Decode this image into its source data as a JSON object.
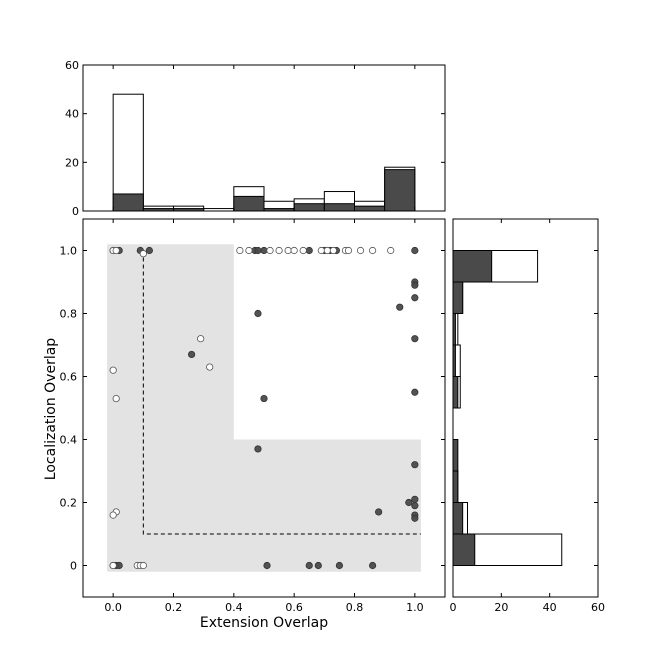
{
  "chart_data": [
    {
      "panel": "top-histogram",
      "type": "bar",
      "stacked_overlay": true,
      "bins": [
        [
          0.0,
          0.1
        ],
        [
          0.1,
          0.2
        ],
        [
          0.2,
          0.3
        ],
        [
          0.3,
          0.4
        ],
        [
          0.4,
          0.5
        ],
        [
          0.5,
          0.6
        ],
        [
          0.6,
          0.7
        ],
        [
          0.7,
          0.8
        ],
        [
          0.8,
          0.9
        ],
        [
          0.9,
          1.0
        ]
      ],
      "series": [
        {
          "style": "open",
          "color": "#ffffff",
          "edge": "#000000",
          "values": [
            48,
            2,
            2,
            1,
            10,
            4,
            5,
            8,
            4,
            18
          ]
        },
        {
          "style": "filled",
          "color": "#4a4a4a",
          "edge": "#000000",
          "values": [
            7,
            1,
            1,
            0,
            6,
            1,
            3,
            3,
            2,
            17
          ]
        }
      ],
      "xlim": [
        -0.1,
        1.1
      ],
      "ylim": [
        0,
        60
      ],
      "yticks": [
        "0",
        "20",
        "40",
        "60"
      ]
    },
    {
      "panel": "main-scatter",
      "type": "scatter",
      "xlabel": "Extension Overlap",
      "ylabel": "Localization Overlap",
      "xlim": [
        -0.1,
        1.1
      ],
      "ylim": [
        -0.1,
        1.1
      ],
      "xticks": [
        "0.0",
        "0.2",
        "0.4",
        "0.6",
        "0.8",
        "1.0"
      ],
      "yticks": [
        "0",
        "0.2",
        "0.4",
        "0.6",
        "0.8",
        "1.0"
      ],
      "shaded_region": [
        [
          -0.02,
          -0.02
        ],
        [
          -0.02,
          1.02
        ],
        [
          0.4,
          1.02
        ],
        [
          0.4,
          0.4
        ],
        [
          1.02,
          0.4
        ],
        [
          1.02,
          -0.02
        ]
      ],
      "shaded_color": "#e3e3e3",
      "dashed_threshold": [
        [
          0.1,
          1.0
        ],
        [
          0.1,
          0.1
        ],
        [
          1.02,
          0.1
        ]
      ],
      "series": [
        {
          "style": "filled",
          "color": "#4a4a4a",
          "points": [
            [
              0.0,
              1.0
            ],
            [
              0.02,
              1.0
            ],
            [
              0.09,
              1.0
            ],
            [
              0.12,
              1.0
            ],
            [
              0.47,
              1.0
            ],
            [
              0.48,
              1.0
            ],
            [
              0.5,
              1.0
            ],
            [
              0.65,
              1.0
            ],
            [
              0.7,
              1.0
            ],
            [
              0.72,
              1.0
            ],
            [
              0.74,
              1.0
            ],
            [
              1.0,
              1.0
            ],
            [
              1.0,
              0.9
            ],
            [
              1.0,
              0.89
            ],
            [
              1.0,
              0.85
            ],
            [
              0.95,
              0.82
            ],
            [
              0.48,
              0.8
            ],
            [
              1.0,
              0.72
            ],
            [
              0.26,
              0.67
            ],
            [
              0.5,
              0.53
            ],
            [
              1.0,
              0.55
            ],
            [
              0.48,
              0.37
            ],
            [
              1.0,
              0.32
            ],
            [
              0.98,
              0.2
            ],
            [
              1.0,
              0.21
            ],
            [
              1.0,
              0.19
            ],
            [
              0.88,
              0.17
            ],
            [
              1.0,
              0.16
            ],
            [
              1.0,
              0.15
            ],
            [
              0.0,
              0.0
            ],
            [
              0.01,
              0.0
            ],
            [
              0.02,
              0.0
            ],
            [
              0.51,
              0.0
            ],
            [
              0.65,
              0.0
            ],
            [
              0.68,
              0.0
            ],
            [
              0.75,
              0.0
            ],
            [
              0.86,
              0.0
            ]
          ]
        },
        {
          "style": "open",
          "color": "#ffffff",
          "points": [
            [
              0.0,
              1.0
            ],
            [
              0.01,
              1.0
            ],
            [
              0.1,
              0.99
            ],
            [
              0.42,
              1.0
            ],
            [
              0.45,
              1.0
            ],
            [
              0.52,
              1.0
            ],
            [
              0.55,
              1.0
            ],
            [
              0.58,
              1.0
            ],
            [
              0.6,
              1.0
            ],
            [
              0.63,
              1.0
            ],
            [
              0.69,
              1.0
            ],
            [
              0.71,
              1.0
            ],
            [
              0.73,
              1.0
            ],
            [
              0.77,
              1.0
            ],
            [
              0.78,
              1.0
            ],
            [
              0.82,
              1.0
            ],
            [
              0.86,
              1.0
            ],
            [
              0.92,
              1.0
            ],
            [
              0.29,
              0.72
            ],
            [
              0.32,
              0.63
            ],
            [
              0.0,
              0.62
            ],
            [
              0.01,
              0.53
            ],
            [
              0.01,
              0.17
            ],
            [
              0.0,
              0.16
            ],
            [
              0.0,
              0.0
            ],
            [
              0.08,
              0.0
            ],
            [
              0.09,
              0.0
            ],
            [
              0.1,
              0.0
            ]
          ]
        }
      ]
    },
    {
      "panel": "right-histogram",
      "type": "bar",
      "orientation": "horizontal",
      "stacked_overlay": true,
      "bins": [
        [
          0.0,
          0.1
        ],
        [
          0.1,
          0.2
        ],
        [
          0.2,
          0.3
        ],
        [
          0.3,
          0.4
        ],
        [
          0.4,
          0.5
        ],
        [
          0.5,
          0.6
        ],
        [
          0.6,
          0.7
        ],
        [
          0.7,
          0.8
        ],
        [
          0.8,
          0.9
        ],
        [
          0.9,
          1.0
        ]
      ],
      "series": [
        {
          "style": "open",
          "color": "#ffffff",
          "edge": "#000000",
          "values": [
            45,
            6,
            2,
            0,
            0,
            3,
            3,
            2,
            4,
            35
          ]
        },
        {
          "style": "filled",
          "color": "#4a4a4a",
          "edge": "#000000",
          "values": [
            9,
            4,
            2,
            2,
            0,
            2,
            1,
            1,
            4,
            16
          ]
        }
      ],
      "xlim": [
        0,
        60
      ],
      "ylim": [
        -0.1,
        1.1
      ],
      "xticks": [
        "0",
        "20",
        "40",
        "60"
      ]
    }
  ]
}
